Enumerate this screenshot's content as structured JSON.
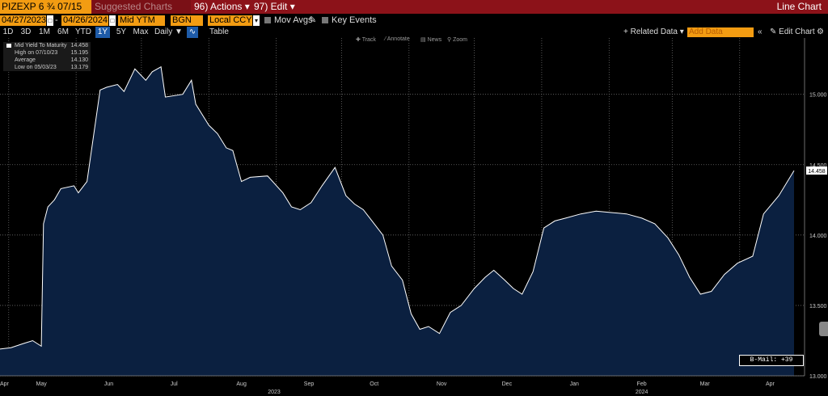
{
  "header": {
    "ticker": "PIZEXP 6 ¾ 07/15",
    "suggested": "Suggested Charts",
    "actions": "96) Actions ▾",
    "edit": "97) Edit ▾",
    "title": "Line Chart"
  },
  "fields": {
    "start_date": "04/27/2023",
    "end_date": "04/26/2024",
    "field": "Mid YTM",
    "source": "BGN",
    "currency": "Local CCY",
    "mov_avgs": "Mov Avgs",
    "key_events": "Key Events"
  },
  "timeframes": [
    "1D",
    "3D",
    "1M",
    "6M",
    "YTD",
    "1Y",
    "5Y",
    "Max"
  ],
  "active_timeframe": "1Y",
  "periodicity": "Daily ▼",
  "table_label": "Table",
  "related_data": "+ Related Data ▾",
  "add_data": "Add Data",
  "edit_chart": "✎ Edit Chart",
  "tools": {
    "track": "Track",
    "annotate": "Annotate",
    "news": "News",
    "zoom": "Zoom"
  },
  "legend": {
    "series": "Mid Yield To Maturity",
    "series_value": "14.458",
    "high_label": "High on 07/10/23",
    "high_value": "15.195",
    "avg_label": "Average",
    "avg_value": "14.130",
    "low_label": "Low on 05/03/23",
    "low_value": "13.179"
  },
  "last_value_tag": "14.458",
  "bmail": "B-Mail: +39",
  "colors": {
    "header_bg": "#8c1219",
    "field_bg": "#f39c12",
    "area_fill": "#0b2040",
    "line": "#ffffff",
    "grid": "#6b6b6b"
  },
  "chart_data": {
    "type": "area",
    "ylim": [
      13.0,
      15.4
    ],
    "y_ticks": [
      "13.000",
      "13.500",
      "14.000",
      "14.500",
      "15.000"
    ],
    "x_ticks": [
      "Apr",
      "May",
      "Jun",
      "Jul",
      "Aug",
      "Sep",
      "Oct",
      "Nov",
      "Dec",
      "Jan",
      "Feb",
      "Mar",
      "Apr"
    ],
    "year_labels": [
      "2023",
      "2024"
    ],
    "x": [
      "2023-04-27",
      "2023-05-02",
      "2023-05-08",
      "2023-05-12",
      "2023-05-16",
      "2023-05-17",
      "2023-05-19",
      "2023-05-22",
      "2023-05-25",
      "2023-05-31",
      "2023-06-02",
      "2023-06-06",
      "2023-06-12",
      "2023-06-15",
      "2023-06-20",
      "2023-06-23",
      "2023-06-28",
      "2023-07-03",
      "2023-07-06",
      "2023-07-10",
      "2023-07-12",
      "2023-07-20",
      "2023-07-24",
      "2023-07-26",
      "2023-08-01",
      "2023-08-05",
      "2023-08-09",
      "2023-08-12",
      "2023-08-16",
      "2023-08-20",
      "2023-08-28",
      "2023-09-04",
      "2023-09-08",
      "2023-09-12",
      "2023-09-17",
      "2023-09-22",
      "2023-09-28",
      "2023-10-03",
      "2023-10-07",
      "2023-10-11",
      "2023-10-15",
      "2023-10-20",
      "2023-10-24",
      "2023-10-29",
      "2023-11-02",
      "2023-11-06",
      "2023-11-10",
      "2023-11-15",
      "2023-11-20",
      "2023-11-25",
      "2023-12-01",
      "2023-12-06",
      "2023-12-10",
      "2023-12-15",
      "2023-12-19",
      "2023-12-23",
      "2023-12-28",
      "2024-01-02",
      "2024-01-07",
      "2024-01-12",
      "2024-01-19",
      "2024-01-26",
      "2024-02-02",
      "2024-02-09",
      "2024-02-16",
      "2024-02-22",
      "2024-02-28",
      "2024-03-04",
      "2024-03-09",
      "2024-03-14",
      "2024-03-19",
      "2024-03-25",
      "2024-03-31",
      "2024-04-07",
      "2024-04-12",
      "2024-04-19",
      "2024-04-26"
    ],
    "values": [
      13.19,
      13.2,
      13.23,
      13.25,
      13.21,
      14.08,
      14.2,
      14.25,
      14.33,
      14.35,
      14.3,
      14.38,
      15.03,
      15.05,
      15.07,
      15.02,
      15.18,
      15.1,
      15.16,
      15.195,
      14.98,
      15.0,
      15.1,
      14.93,
      14.78,
      14.72,
      14.62,
      14.6,
      14.38,
      14.41,
      14.42,
      14.3,
      14.2,
      14.18,
      14.23,
      14.35,
      14.48,
      14.28,
      14.22,
      14.18,
      14.1,
      14.0,
      13.78,
      13.68,
      13.44,
      13.33,
      13.35,
      13.3,
      13.45,
      13.5,
      13.62,
      13.7,
      13.75,
      13.68,
      13.62,
      13.58,
      13.74,
      14.05,
      14.1,
      14.12,
      14.15,
      14.17,
      14.16,
      14.15,
      14.12,
      14.08,
      13.98,
      13.86,
      13.7,
      13.58,
      13.6,
      13.72,
      13.8,
      13.85,
      14.15,
      14.28,
      14.458
    ]
  }
}
